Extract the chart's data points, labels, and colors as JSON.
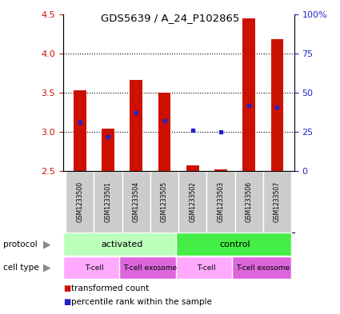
{
  "title": "GDS5639 / A_24_P102865",
  "samples": [
    "GSM1233500",
    "GSM1233501",
    "GSM1233504",
    "GSM1233505",
    "GSM1233502",
    "GSM1233503",
    "GSM1233506",
    "GSM1233507"
  ],
  "transformed_count": [
    3.53,
    3.04,
    3.66,
    3.5,
    2.57,
    2.52,
    4.45,
    4.18
  ],
  "percentile_rank": [
    31,
    22,
    37,
    32,
    26,
    25,
    42,
    41
  ],
  "ylim_left": [
    2.5,
    4.5
  ],
  "ylim_right": [
    0,
    100
  ],
  "yticks_left": [
    2.5,
    3.0,
    3.5,
    4.0,
    4.5
  ],
  "yticks_right": [
    0,
    25,
    50,
    75,
    100
  ],
  "yticklabels_right": [
    "0",
    "25",
    "50",
    "75",
    "100%"
  ],
  "bar_color": "#cc1100",
  "dot_color": "#2222cc",
  "bar_bottom": 2.5,
  "protocol_groups": [
    {
      "label": "activated",
      "span": [
        0,
        4
      ],
      "color": "#bbffbb"
    },
    {
      "label": "control",
      "span": [
        4,
        8
      ],
      "color": "#44ee44"
    }
  ],
  "cell_type_groups": [
    {
      "label": "T-cell",
      "span": [
        0,
        2
      ],
      "color": "#ffaaff"
    },
    {
      "label": "T-cell exosome",
      "span": [
        2,
        4
      ],
      "color": "#dd66dd"
    },
    {
      "label": "T-cell",
      "span": [
        4,
        6
      ],
      "color": "#ffaaff"
    },
    {
      "label": "T-cell exosome",
      "span": [
        6,
        8
      ],
      "color": "#dd66dd"
    }
  ],
  "grid_yticks": [
    3.0,
    3.5,
    4.0
  ],
  "sample_area_color": "#cccccc",
  "bar_width": 0.45
}
